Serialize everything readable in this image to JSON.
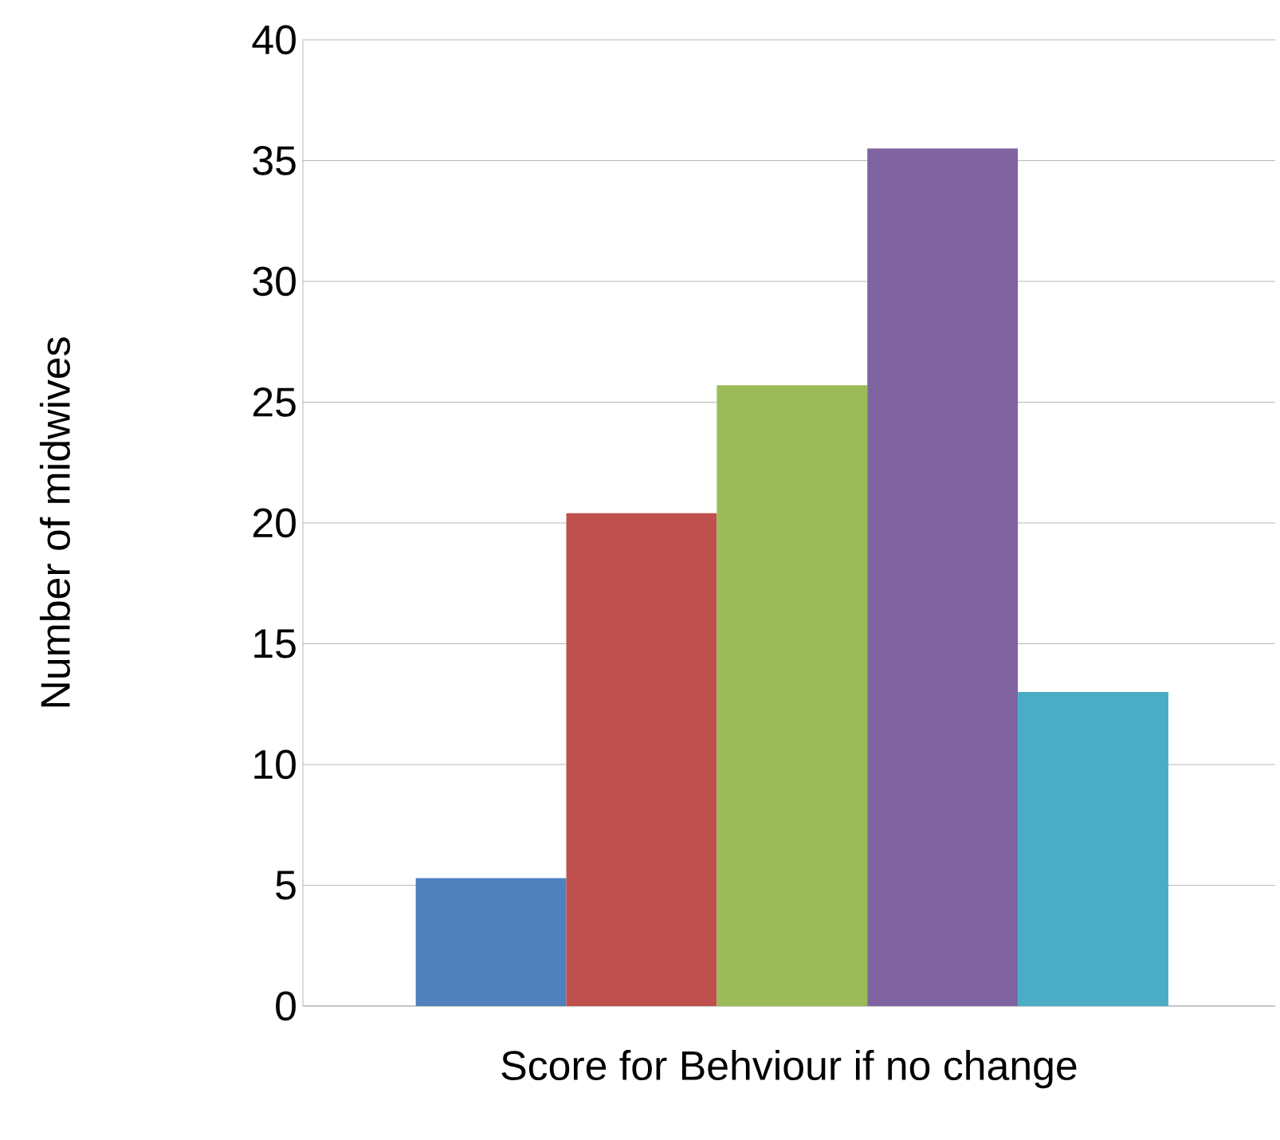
{
  "chart_data": {
    "type": "bar",
    "xlabel": "Score for Behviour if no change",
    "ylabel": "Number of midwives",
    "categories": [
      null,
      null,
      null,
      null,
      null
    ],
    "values": [
      5.3,
      20.4,
      25.7,
      35.5,
      13.0
    ],
    "colors": [
      "#4f81bd",
      "#c0504d",
      "#9bbb59",
      "#8064a2",
      "#4bacc6"
    ],
    "ylim": [
      0,
      40
    ],
    "yticks": [
      0,
      5,
      10,
      15,
      20,
      25,
      30,
      35,
      40
    ],
    "grid": "y"
  }
}
